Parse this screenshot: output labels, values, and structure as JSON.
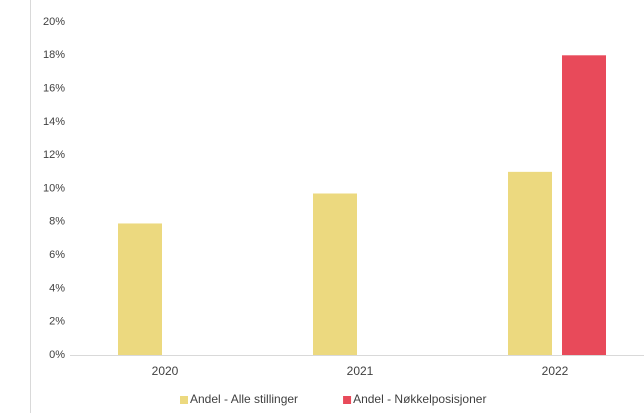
{
  "chart_data": {
    "type": "bar",
    "categories": [
      "2020",
      "2021",
      "2022"
    ],
    "series": [
      {
        "name": "Andel - Alle stillinger",
        "color": "#ecd97f",
        "values": [
          7.9,
          9.7,
          11.0
        ]
      },
      {
        "name": "Andel - Nøkkelposisjoner",
        "color": "#e84a5a",
        "values": [
          null,
          null,
          18.0
        ]
      }
    ],
    "ylim": [
      0,
      20
    ],
    "yticks": [
      {
        "value": 0,
        "label": "0%"
      },
      {
        "value": 2,
        "label": "2%"
      },
      {
        "value": 4,
        "label": "4%"
      },
      {
        "value": 6,
        "label": "6%"
      },
      {
        "value": 8,
        "label": "8%"
      },
      {
        "value": 10,
        "label": "10%"
      },
      {
        "value": 12,
        "label": "12%"
      },
      {
        "value": 14,
        "label": "14%"
      },
      {
        "value": 16,
        "label": "16%"
      },
      {
        "value": 18,
        "label": "18%"
      },
      {
        "value": 20,
        "label": "20%"
      }
    ],
    "grid": false
  }
}
